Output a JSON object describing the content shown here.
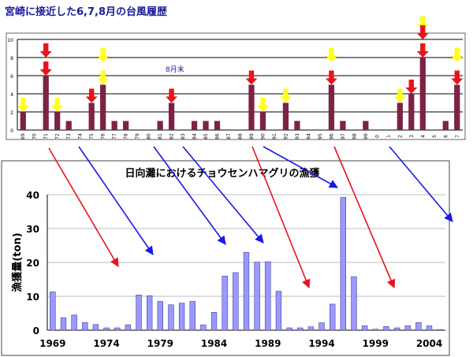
{
  "chart_data": [
    {
      "type": "bar",
      "title": "宮崎に接近した6,7,8月の台風履歴",
      "annotation": "8月末",
      "categories": [
        "69",
        "70",
        "71",
        "72",
        "73",
        "74",
        "75",
        "76",
        "77",
        "78",
        "79",
        "80",
        "81",
        "82",
        "83",
        "84",
        "85",
        "86",
        "87",
        "88",
        "89",
        "90",
        "91",
        "92",
        "93",
        "94",
        "95",
        "96",
        "97",
        "98",
        "99",
        "0",
        "1",
        "2",
        "3",
        "4",
        "5",
        "6",
        "7"
      ],
      "values": [
        2,
        0,
        6,
        2,
        1,
        0,
        3,
        5,
        1,
        1,
        0,
        0,
        1,
        3,
        0,
        1,
        1,
        1,
        0,
        0,
        5,
        2,
        0,
        3,
        1,
        0,
        0,
        5,
        1,
        0,
        1,
        0,
        0,
        3,
        4,
        8,
        0,
        1,
        5
      ],
      "yticks": [
        "0",
        "2",
        "4",
        "6",
        "8",
        "10"
      ],
      "ylim": [
        0,
        10
      ],
      "bar_color": "#7b2246",
      "arrow_marks": [
        {
          "category": "69",
          "color": "yellow",
          "level": 2
        },
        {
          "category": "71",
          "color": "red",
          "level": 8
        },
        {
          "category": "71",
          "color": "red",
          "level": 6
        },
        {
          "category": "72",
          "color": "yellow",
          "level": 2
        },
        {
          "category": "75",
          "color": "red",
          "level": 3
        },
        {
          "category": "76",
          "color": "yellow",
          "level": 7.5
        },
        {
          "category": "76",
          "color": "yellow",
          "level": 5
        },
        {
          "category": "82",
          "color": "red",
          "level": 3
        },
        {
          "category": "89",
          "color": "red",
          "level": 5
        },
        {
          "category": "90",
          "color": "yellow",
          "level": 2
        },
        {
          "category": "92",
          "color": "yellow",
          "level": 3
        },
        {
          "category": "96",
          "color": "yellow",
          "level": 7.5
        },
        {
          "category": "96",
          "color": "red",
          "level": 5
        },
        {
          "category": "2",
          "color": "yellow",
          "level": 3
        },
        {
          "category": "3",
          "color": "red",
          "level": 4
        },
        {
          "category": "4",
          "color": "yellow",
          "level": 11
        },
        {
          "category": "4",
          "color": "red",
          "level": 10
        },
        {
          "category": "4",
          "color": "red",
          "level": 8
        },
        {
          "category": "7",
          "color": "yellow",
          "level": 7.5
        },
        {
          "category": "7",
          "color": "red",
          "level": 5
        }
      ]
    },
    {
      "type": "bar",
      "title": "日向灘におけるチョウセンハマグリの漁獲",
      "ylabel": "漁獲量(ton)",
      "x": [
        1969,
        1970,
        1971,
        1972,
        1973,
        1974,
        1975,
        1976,
        1977,
        1978,
        1979,
        1980,
        1981,
        1982,
        1983,
        1984,
        1985,
        1986,
        1987,
        1988,
        1989,
        1990,
        1991,
        1992,
        1993,
        1994,
        1995,
        1996,
        1997,
        1998,
        1999,
        2000,
        2001,
        2002,
        2003,
        2004,
        2005
      ],
      "values": [
        11.3,
        3.7,
        4.5,
        2.3,
        1.7,
        0.7,
        0.7,
        1.6,
        10.4,
        10.2,
        8.5,
        7.5,
        8,
        8.5,
        1.6,
        5.3,
        16,
        17,
        23,
        20.1,
        20.2,
        11.5,
        0.7,
        0.7,
        1,
        2.2,
        7.7,
        39.2,
        15.8,
        1.3,
        0.3,
        1.1,
        0.7,
        1.3,
        2.3,
        1.3,
        0.2
      ],
      "xticks": [
        "1969",
        "1974",
        "1979",
        "1984",
        "1989",
        "1994",
        "1999",
        "2004"
      ],
      "yticks": [
        "0",
        "10",
        "20",
        "30",
        "40"
      ],
      "ylim": [
        0,
        40
      ],
      "bar_color": "#9999ff"
    }
  ]
}
